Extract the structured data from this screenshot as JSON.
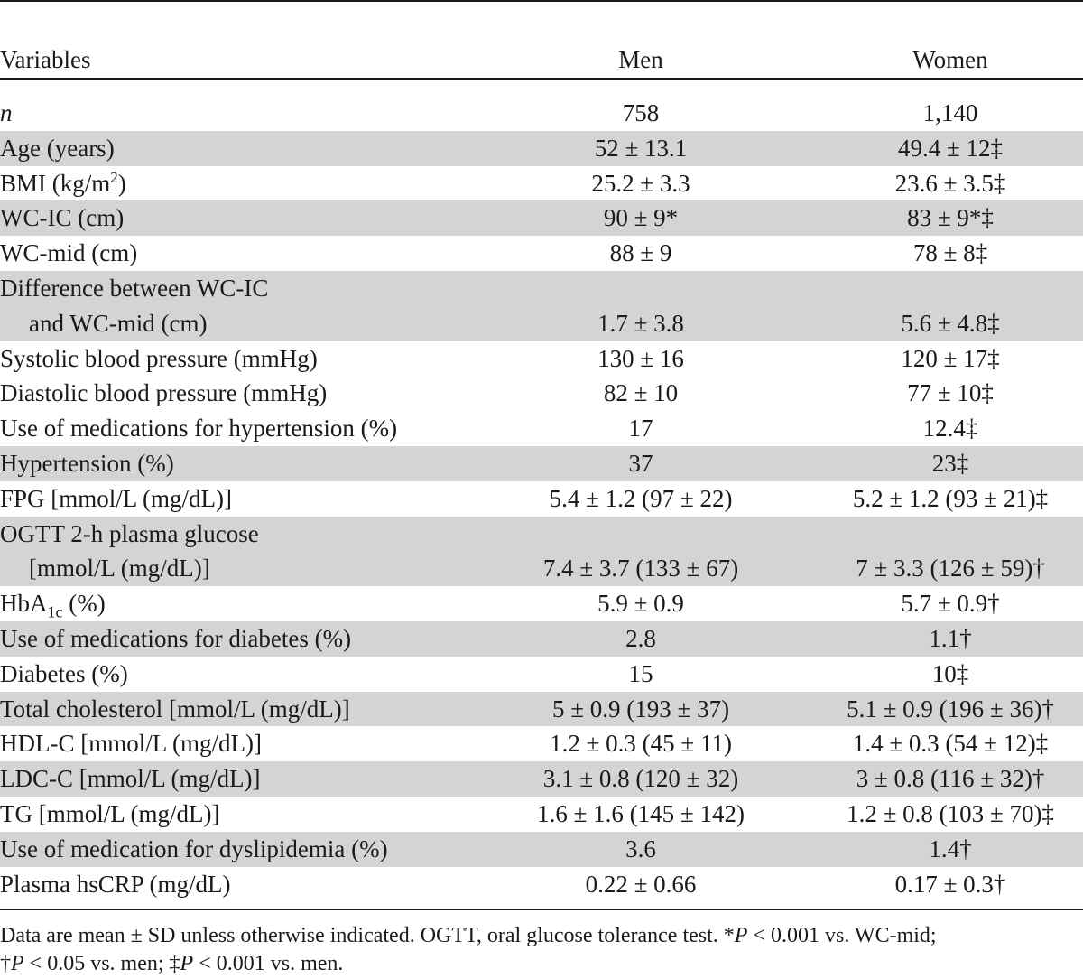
{
  "headers": {
    "variables": "Variables",
    "men": "Men",
    "women": "Women"
  },
  "rows": [
    {
      "label": "n",
      "men": "758",
      "women": "1,140"
    },
    {
      "label": "Age (years)",
      "men": "52 ± 13.1",
      "women": "49.4 ± 12‡"
    },
    {
      "label_pre": "BMI (kg/m",
      "label_sup": "2",
      "label_post": ")",
      "men": "25.2 ± 3.3",
      "women": "23.6 ± 3.5‡"
    },
    {
      "label": "WC-IC (cm)",
      "men": "90 ± 9*",
      "women": "83 ± 9*‡"
    },
    {
      "label": "WC-mid (cm)",
      "men": "88 ± 9",
      "women": "78 ± 8‡"
    },
    {
      "label_line1": "Difference between WC-IC",
      "label_line2": "and WC-mid (cm)",
      "men": "1.7 ± 3.8",
      "women": "5.6 ± 4.8‡"
    },
    {
      "label": "Systolic blood pressure (mmHg)",
      "men": "130 ± 16",
      "women": "120 ± 17‡"
    },
    {
      "label": "Diastolic blood pressure (mmHg)",
      "men": "82 ± 10",
      "women": "77 ± 10‡"
    },
    {
      "label": "Use of medications for hypertension (%)",
      "men": "17",
      "women": "12.4‡"
    },
    {
      "label": "Hypertension (%)",
      "men": "37",
      "women": "23‡"
    },
    {
      "label": "FPG [mmol/L (mg/dL)]",
      "men": "5.4 ± 1.2 (97 ± 22)",
      "women": "5.2 ± 1.2 (93 ± 21)‡"
    },
    {
      "label_line1": "OGTT 2-h plasma glucose",
      "label_line2": "[mmol/L (mg/dL)]",
      "men": "7.4 ± 3.7 (133 ± 67)",
      "women": "7 ± 3.3 (126 ± 59)†"
    },
    {
      "label_pre": "HbA",
      "label_sub": "1c",
      "label_post": " (%)",
      "men": "5.9 ± 0.9",
      "women": "5.7 ± 0.9†"
    },
    {
      "label": "Use of medications for diabetes (%)",
      "men": "2.8",
      "women": "1.1†"
    },
    {
      "label": "Diabetes (%)",
      "men": "15",
      "women": "10‡"
    },
    {
      "label": "Total cholesterol [mmol/L (mg/dL)]",
      "men": "5 ± 0.9 (193 ± 37)",
      "women": "5.1 ± 0.9 (196 ± 36)†"
    },
    {
      "label": "HDL-C [mmol/L (mg/dL)]",
      "men": "1.2 ± 0.3 (45 ± 11)",
      "women": "1.4 ± 0.3 (54 ± 12)‡"
    },
    {
      "label": "LDC-C [mmol/L (mg/dL)]",
      "men": "3.1 ± 0.8 (120 ± 32)",
      "women": "3 ± 0.8 (116 ± 32)†"
    },
    {
      "label": "TG [mmol/L (mg/dL)]",
      "men": "1.6 ± 1.6 (145 ± 142)",
      "women": "1.2 ± 0.8 (103 ± 70)‡"
    },
    {
      "label": "Use of medication for dyslipidemia (%)",
      "men": "3.6",
      "women": "1.4†"
    },
    {
      "label": "Plasma hsCRP (mg/dL)",
      "men": "0.22 ± 0.66",
      "women": "0.17 ± 0.3†"
    }
  ],
  "footnote": {
    "part1": "Data are mean ± SD unless otherwise indicated. OGTT, oral glucose tolerance test. *",
    "p1": "P",
    "part2": " < 0.001 vs. WC-mid;",
    "part3": "†",
    "p2": "P",
    "part4": " < 0.05 vs. men; ‡",
    "p3": "P",
    "part5": " < 0.001 vs. men."
  }
}
